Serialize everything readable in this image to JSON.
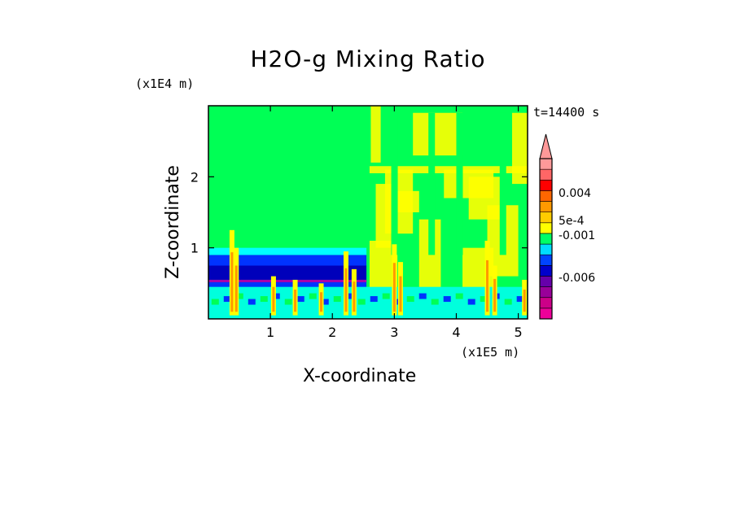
{
  "chart_data": {
    "type": "heatmap",
    "title": "H2O-g Mixing Ratio",
    "xlabel": "X-coordinate",
    "ylabel": "Z-coordinate",
    "x_unit": "(x1E5 m)",
    "y_unit": "(x1E4 m)",
    "time_label": "t=14400 s",
    "xlim": [
      0,
      5.15
    ],
    "ylim": [
      0,
      3.0
    ],
    "x_ticks": [
      "1",
      "2",
      "3",
      "4",
      "5"
    ],
    "y_ticks": [
      "1",
      "2"
    ],
    "colorbar": {
      "labels": [
        "0.004",
        "5e-4",
        "-0.001",
        "-0.006"
      ],
      "label_values": [
        0.004,
        0.0005,
        -0.001,
        -0.006
      ],
      "bins": [
        {
          "color": "#ee0099"
        },
        {
          "color": "#cc0088"
        },
        {
          "color": "#990099"
        },
        {
          "color": "#6600aa"
        },
        {
          "color": "#0000cc"
        },
        {
          "color": "#0044ff"
        },
        {
          "color": "#00ddff"
        },
        {
          "color": "#00ff66"
        },
        {
          "color": "#ffff00"
        },
        {
          "color": "#ffcc00"
        },
        {
          "color": "#ff9900"
        },
        {
          "color": "#ff6600"
        },
        {
          "color": "#ff0000"
        },
        {
          "color": "#ff6666"
        },
        {
          "color": "#ff9999"
        }
      ]
    },
    "layers": [
      {
        "zmin": 0.0,
        "zmax": 0.55,
        "xmax": 2.55,
        "color": "#0033ff"
      },
      {
        "zmin": 0.55,
        "zmax": 0.75,
        "xmax": 2.55,
        "color": "#0000bb"
      },
      {
        "zmin": 0.75,
        "zmax": 0.9,
        "xmax": 2.55,
        "color": "#0033ff"
      },
      {
        "zmin": 0.9,
        "zmax": 1.0,
        "xmax": 2.55,
        "color": "#00ffff"
      }
    ]
  }
}
